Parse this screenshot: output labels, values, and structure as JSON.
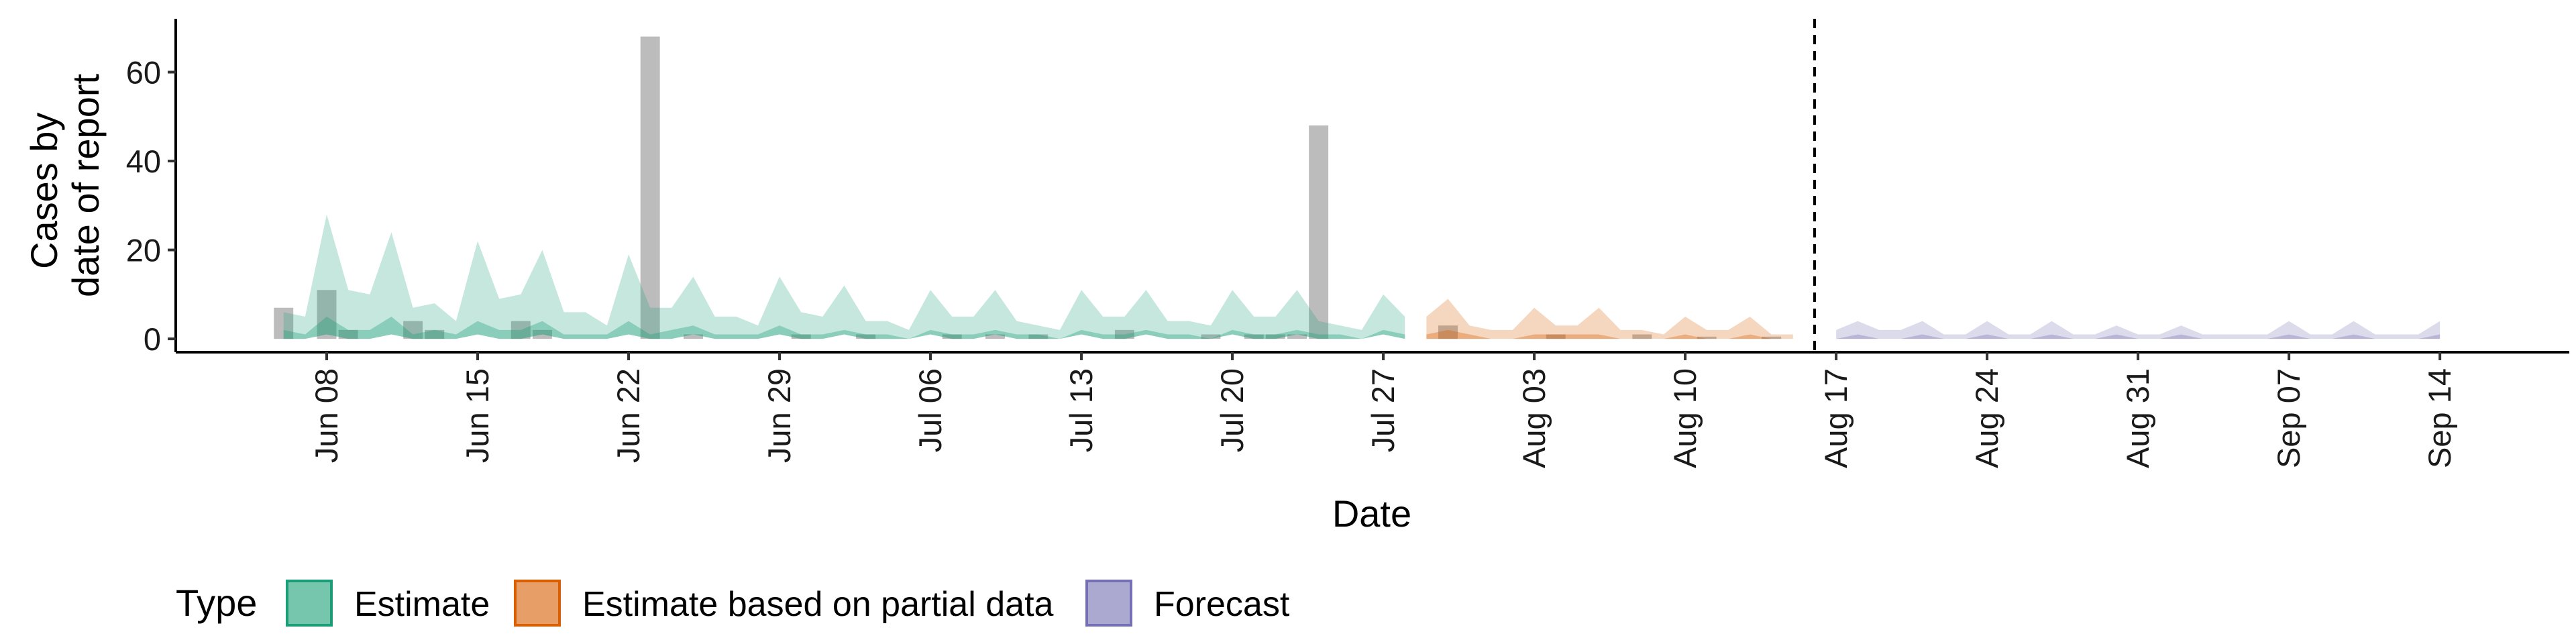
{
  "chart_data": {
    "type": "area",
    "xlabel": "Date",
    "ylabel_lines": [
      "Cases by",
      "date of report"
    ],
    "ylim": [
      -3,
      72
    ],
    "y_ticks": [
      0,
      20,
      40,
      60
    ],
    "x_ticks": [
      {
        "date": "2020-06-08",
        "label": "Jun 08"
      },
      {
        "date": "2020-06-15",
        "label": "Jun 15"
      },
      {
        "date": "2020-06-22",
        "label": "Jun 22"
      },
      {
        "date": "2020-06-29",
        "label": "Jun 29"
      },
      {
        "date": "2020-07-06",
        "label": "Jul 06"
      },
      {
        "date": "2020-07-13",
        "label": "Jul 13"
      },
      {
        "date": "2020-07-20",
        "label": "Jul 20"
      },
      {
        "date": "2020-07-27",
        "label": "Jul 27"
      },
      {
        "date": "2020-08-03",
        "label": "Aug 03"
      },
      {
        "date": "2020-08-10",
        "label": "Aug 10"
      },
      {
        "date": "2020-08-17",
        "label": "Aug 17"
      },
      {
        "date": "2020-08-24",
        "label": "Aug 24"
      },
      {
        "date": "2020-08-31",
        "label": "Aug 31"
      },
      {
        "date": "2020-09-07",
        "label": "Sep 07"
      },
      {
        "date": "2020-09-14",
        "label": "Sep 14"
      }
    ],
    "xlim": [
      "2020-06-01",
      "2020-09-20"
    ],
    "forecast_date": "2020-08-16",
    "grid": false,
    "legend_position": "bottom",
    "legend_title": "Type",
    "series": [
      {
        "name": "Estimate",
        "color": "#1b9e77",
        "x": [
          "2020-06-06",
          "2020-06-07",
          "2020-06-08",
          "2020-06-09",
          "2020-06-10",
          "2020-06-11",
          "2020-06-12",
          "2020-06-13",
          "2020-06-14",
          "2020-06-15",
          "2020-06-16",
          "2020-06-17",
          "2020-06-18",
          "2020-06-19",
          "2020-06-20",
          "2020-06-21",
          "2020-06-22",
          "2020-06-23",
          "2020-06-24",
          "2020-06-25",
          "2020-06-26",
          "2020-06-27",
          "2020-06-28",
          "2020-06-29",
          "2020-06-30",
          "2020-07-01",
          "2020-07-02",
          "2020-07-03",
          "2020-07-04",
          "2020-07-05",
          "2020-07-06",
          "2020-07-07",
          "2020-07-08",
          "2020-07-09",
          "2020-07-10",
          "2020-07-11",
          "2020-07-12",
          "2020-07-13",
          "2020-07-14",
          "2020-07-15",
          "2020-07-16",
          "2020-07-17",
          "2020-07-18",
          "2020-07-19",
          "2020-07-20",
          "2020-07-21",
          "2020-07-22",
          "2020-07-23",
          "2020-07-24",
          "2020-07-25",
          "2020-07-26",
          "2020-07-27",
          "2020-07-28"
        ],
        "upper": [
          6,
          5,
          28,
          11,
          10,
          24,
          7,
          8,
          4,
          22,
          9,
          10,
          20,
          6,
          6,
          3,
          19,
          7,
          7,
          14,
          5,
          5,
          3,
          14,
          6,
          5,
          12,
          4,
          4,
          2,
          11,
          5,
          5,
          11,
          4,
          3,
          2,
          11,
          5,
          5,
          11,
          4,
          4,
          3,
          11,
          5,
          5,
          11,
          4,
          3,
          2,
          10,
          5
        ],
        "lower": [
          0,
          0,
          1,
          0,
          0,
          1,
          0,
          0,
          0,
          1,
          0,
          0,
          1,
          0,
          0,
          0,
          1,
          0,
          0,
          1,
          0,
          0,
          0,
          1,
          0,
          0,
          1,
          0,
          0,
          0,
          1,
          0,
          0,
          1,
          0,
          0,
          0,
          1,
          0,
          0,
          1,
          0,
          0,
          0,
          1,
          0,
          0,
          1,
          0,
          0,
          0,
          1,
          0
        ],
        "median": [
          2,
          1,
          5,
          2,
          2,
          5,
          1,
          2,
          1,
          4,
          2,
          2,
          4,
          1,
          1,
          1,
          4,
          1,
          2,
          3,
          1,
          1,
          1,
          3,
          1,
          1,
          2,
          1,
          1,
          0,
          2,
          1,
          1,
          2,
          1,
          1,
          0,
          2,
          1,
          1,
          2,
          1,
          1,
          0,
          2,
          1,
          1,
          2,
          1,
          1,
          0,
          2,
          1
        ]
      },
      {
        "name": "Estimate based on partial data",
        "color": "#d95f02",
        "x": [
          "2020-07-29",
          "2020-07-30",
          "2020-07-31",
          "2020-08-01",
          "2020-08-02",
          "2020-08-03",
          "2020-08-04",
          "2020-08-05",
          "2020-08-06",
          "2020-08-07",
          "2020-08-08",
          "2020-08-09",
          "2020-08-10",
          "2020-08-11",
          "2020-08-12",
          "2020-08-13",
          "2020-08-14",
          "2020-08-15"
        ],
        "upper": [
          5,
          9,
          3,
          2,
          2,
          7,
          3,
          3,
          7,
          2,
          2,
          1,
          5,
          2,
          2,
          5,
          1,
          1
        ],
        "lower": [
          0,
          0,
          0,
          0,
          0,
          0,
          0,
          0,
          0,
          0,
          0,
          0,
          0,
          0,
          0,
          0,
          0,
          0
        ],
        "median": [
          1,
          2,
          1,
          0,
          0,
          1,
          1,
          1,
          1,
          0,
          0,
          0,
          1,
          0,
          0,
          1,
          0,
          0
        ]
      },
      {
        "name": "Forecast",
        "color": "#7570b3",
        "x": [
          "2020-08-17",
          "2020-08-18",
          "2020-08-19",
          "2020-08-20",
          "2020-08-21",
          "2020-08-22",
          "2020-08-23",
          "2020-08-24",
          "2020-08-25",
          "2020-08-26",
          "2020-08-27",
          "2020-08-28",
          "2020-08-29",
          "2020-08-30",
          "2020-08-31",
          "2020-09-01",
          "2020-09-02",
          "2020-09-03",
          "2020-09-04",
          "2020-09-05",
          "2020-09-06",
          "2020-09-07",
          "2020-09-08",
          "2020-09-09",
          "2020-09-10",
          "2020-09-11",
          "2020-09-12",
          "2020-09-13",
          "2020-09-14"
        ],
        "upper": [
          2,
          4,
          2,
          2,
          4,
          1,
          1,
          4,
          1,
          1,
          4,
          1,
          1,
          3,
          1,
          1,
          3,
          1,
          1,
          1,
          1,
          4,
          1,
          1,
          4,
          1,
          1,
          1,
          4
        ],
        "lower": [
          0,
          0,
          0,
          0,
          0,
          0,
          0,
          0,
          0,
          0,
          0,
          0,
          0,
          0,
          0,
          0,
          0,
          0,
          0,
          0,
          0,
          0,
          0,
          0,
          0,
          0,
          0,
          0,
          0
        ],
        "median": [
          0,
          1,
          0,
          0,
          1,
          0,
          0,
          1,
          0,
          0,
          1,
          0,
          0,
          1,
          0,
          0,
          1,
          0,
          0,
          0,
          0,
          1,
          0,
          0,
          1,
          0,
          0,
          0,
          1
        ]
      }
    ],
    "observed_bars": {
      "color": "#a0a0a0",
      "x": [
        "2020-06-06",
        "2020-06-08",
        "2020-06-09",
        "2020-06-12",
        "2020-06-13",
        "2020-06-17",
        "2020-06-18",
        "2020-06-23",
        "2020-06-25",
        "2020-06-30",
        "2020-07-03",
        "2020-07-07",
        "2020-07-09",
        "2020-07-11",
        "2020-07-15",
        "2020-07-19",
        "2020-07-21",
        "2020-07-22",
        "2020-07-23",
        "2020-07-24",
        "2020-07-30",
        "2020-08-04",
        "2020-08-08",
        "2020-08-11",
        "2020-08-14"
      ],
      "values": [
        7,
        11,
        2,
        4,
        2,
        4,
        2,
        68,
        1,
        1,
        1,
        1,
        1,
        1,
        2,
        1,
        1,
        1,
        1,
        48,
        3,
        1,
        1,
        0.5,
        0.5
      ]
    }
  }
}
